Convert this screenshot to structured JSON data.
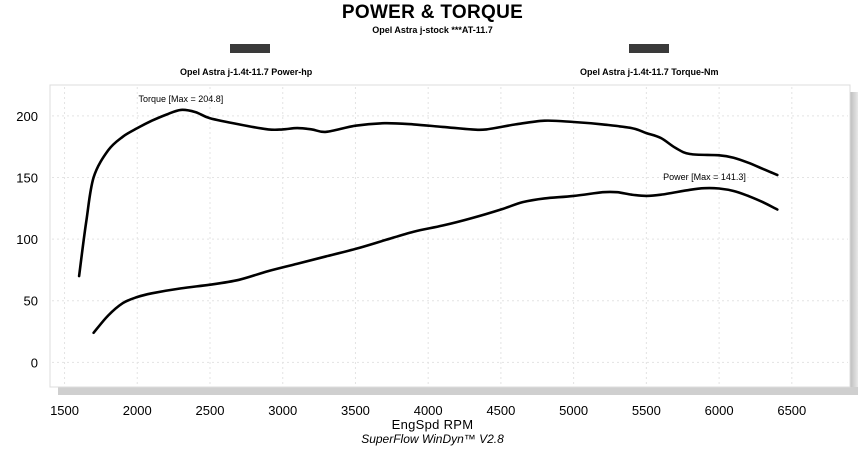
{
  "chart_data": {
    "type": "line",
    "title": "POWER & TORQUE",
    "subtitle": "Opel Astra j-stock ***AT-11.7",
    "xlabel": "EngSpd  RPM",
    "footer": "SuperFlow WinDyn™ V2.8",
    "xlim": [
      1400,
      6900
    ],
    "ylim": [
      -20,
      225
    ],
    "x_ticks": [
      "1500",
      "2000",
      "2500",
      "3000",
      "3500",
      "4000",
      "4500",
      "5000",
      "5500",
      "6000",
      "6500"
    ],
    "y_ticks": [
      "0",
      "50",
      "100",
      "150",
      "200"
    ],
    "grid": true,
    "legend_position": "top",
    "series": [
      {
        "name": "Opel Astra j-1.4t-11.7 Power-hp",
        "annotation": "Power [Max = 141.3]",
        "color": "#000000",
        "points": [
          [
            1700,
            24
          ],
          [
            1800,
            38
          ],
          [
            1900,
            48
          ],
          [
            2000,
            53
          ],
          [
            2100,
            56
          ],
          [
            2300,
            60
          ],
          [
            2500,
            63
          ],
          [
            2700,
            67
          ],
          [
            2900,
            74
          ],
          [
            3100,
            80
          ],
          [
            3300,
            86
          ],
          [
            3500,
            92
          ],
          [
            3700,
            99
          ],
          [
            3900,
            106
          ],
          [
            4100,
            111
          ],
          [
            4300,
            117
          ],
          [
            4500,
            124
          ],
          [
            4650,
            130
          ],
          [
            4800,
            133
          ],
          [
            5000,
            135
          ],
          [
            5200,
            138
          ],
          [
            5300,
            138
          ],
          [
            5400,
            136
          ],
          [
            5500,
            135
          ],
          [
            5600,
            136
          ],
          [
            5800,
            140
          ],
          [
            5900,
            141.3
          ],
          [
            6000,
            141
          ],
          [
            6100,
            139
          ],
          [
            6200,
            135
          ],
          [
            6300,
            130
          ],
          [
            6400,
            124
          ]
        ]
      },
      {
        "name": "Opel Astra j-1.4t-11.7 Torque-Nm",
        "annotation": "Torque [Max = 204.8]",
        "color": "#000000",
        "points": [
          [
            1600,
            70
          ],
          [
            1650,
            115
          ],
          [
            1700,
            150
          ],
          [
            1800,
            172
          ],
          [
            1900,
            183
          ],
          [
            2000,
            190
          ],
          [
            2100,
            196
          ],
          [
            2200,
            201
          ],
          [
            2300,
            204.8
          ],
          [
            2400,
            203
          ],
          [
            2500,
            198
          ],
          [
            2700,
            193
          ],
          [
            2900,
            189
          ],
          [
            3000,
            189
          ],
          [
            3100,
            190
          ],
          [
            3200,
            189
          ],
          [
            3300,
            187
          ],
          [
            3500,
            192
          ],
          [
            3700,
            194
          ],
          [
            3900,
            193
          ],
          [
            4100,
            191
          ],
          [
            4300,
            189
          ],
          [
            4400,
            189
          ],
          [
            4600,
            193
          ],
          [
            4800,
            196
          ],
          [
            5000,
            195
          ],
          [
            5200,
            193
          ],
          [
            5400,
            190
          ],
          [
            5500,
            186
          ],
          [
            5600,
            182
          ],
          [
            5700,
            174
          ],
          [
            5800,
            169
          ],
          [
            6000,
            168
          ],
          [
            6100,
            166
          ],
          [
            6200,
            162
          ],
          [
            6300,
            157
          ],
          [
            6400,
            152
          ]
        ]
      }
    ]
  }
}
